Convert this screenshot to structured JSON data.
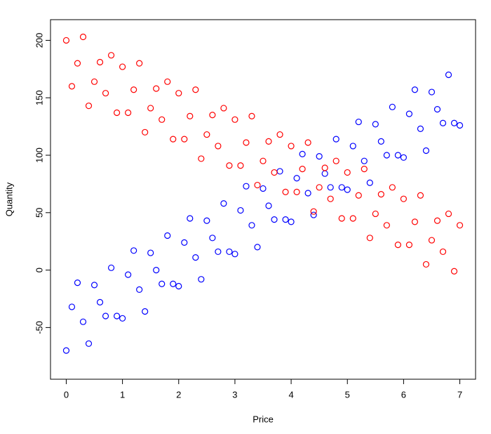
{
  "chart_data": {
    "type": "scatter",
    "xlabel": "Price",
    "ylabel": "Quantity",
    "xlim": [
      -0.28,
      7.28
    ],
    "ylim": [
      -95,
      218
    ],
    "xticks": [
      0,
      1,
      2,
      3,
      4,
      5,
      6,
      7
    ],
    "yticks": [
      -50,
      0,
      50,
      100,
      150,
      200
    ],
    "x": [
      0,
      0.1,
      0.2,
      0.3,
      0.4,
      0.5,
      0.6,
      0.7,
      0.8,
      0.9,
      1,
      1.1,
      1.2,
      1.3,
      1.4,
      1.5,
      1.6,
      1.7,
      1.8,
      1.9,
      2,
      2.1,
      2.2,
      2.3,
      2.4,
      2.5,
      2.6,
      2.7,
      2.8,
      2.9,
      3,
      3.1,
      3.2,
      3.3,
      3.4,
      3.5,
      3.6,
      3.7,
      3.8,
      3.9,
      4,
      4.1,
      4.2,
      4.3,
      4.4,
      4.5,
      4.6,
      4.7,
      4.8,
      4.9,
      5,
      5.1,
      5.2,
      5.3,
      5.4,
      5.5,
      5.6,
      5.7,
      5.8,
      5.9,
      6,
      6.1,
      6.2,
      6.3,
      6.4,
      6.5,
      6.6,
      6.7,
      6.8,
      6.9,
      7
    ],
    "series": [
      {
        "color": "#0000ff",
        "values": [
          -70,
          -32,
          -11,
          -45,
          -64,
          -13,
          -28,
          -40,
          2,
          -40,
          -42,
          -4,
          17,
          -17,
          -36,
          15,
          0,
          -12,
          30,
          -12,
          -14,
          24,
          45,
          11,
          -8,
          43,
          28,
          16,
          58,
          16,
          14,
          52,
          73,
          39,
          20,
          71,
          56,
          44,
          86,
          44,
          42,
          80,
          101,
          67,
          48,
          99,
          84,
          72,
          114,
          72,
          70,
          108,
          129,
          95,
          76,
          127,
          112,
          100,
          142,
          100,
          98,
          136,
          157,
          123,
          104,
          155,
          140,
          128,
          170,
          128,
          126
        ]
      },
      {
        "color": "#ff0000",
        "values": [
          200,
          160,
          180,
          203,
          143,
          164,
          181,
          154,
          187,
          137,
          177,
          137,
          157,
          180,
          120,
          141,
          158,
          131,
          164,
          114,
          154,
          114,
          134,
          157,
          97,
          118,
          135,
          108,
          141,
          91,
          131,
          91,
          111,
          134,
          74,
          95,
          112,
          85,
          118,
          68,
          108,
          68,
          88,
          111,
          51,
          72,
          89,
          62,
          95,
          45,
          85,
          45,
          65,
          88,
          28,
          49,
          66,
          39,
          72,
          22,
          62,
          22,
          42,
          65,
          5,
          26,
          43,
          16,
          49,
          -1,
          39
        ]
      }
    ]
  }
}
